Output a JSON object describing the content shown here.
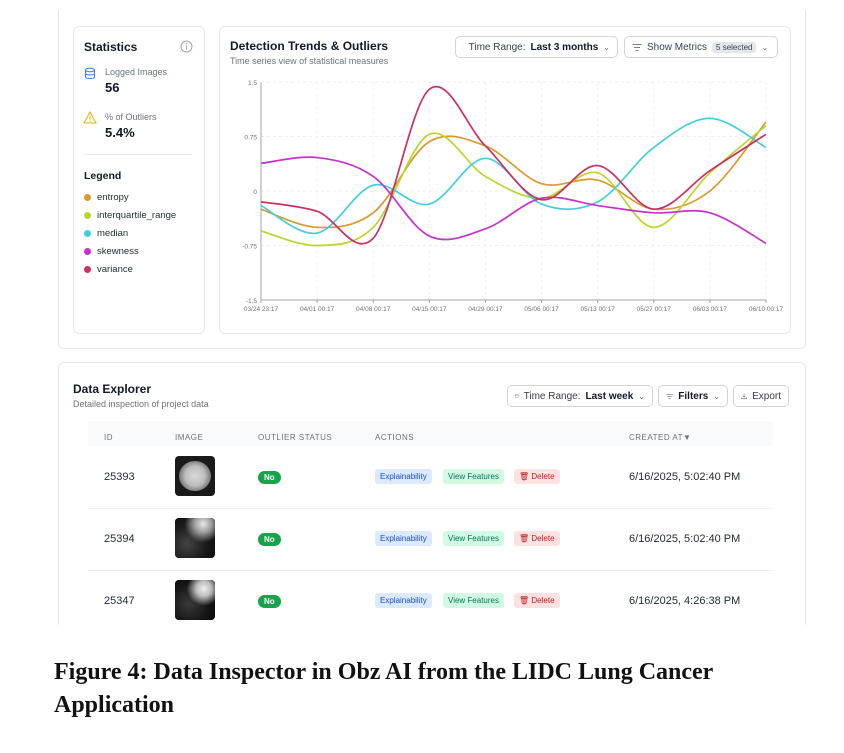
{
  "statistics": {
    "title": "Statistics",
    "logged_images_label": "Logged Images",
    "logged_images_value": "56",
    "outliers_label": "% of Outliers",
    "outliers_value": "5.4%",
    "legend_title": "Legend",
    "legend": [
      {
        "name": "entropy",
        "color": "#d89b2b"
      },
      {
        "name": "interquartile_range",
        "color": "#bcd42e"
      },
      {
        "name": "median",
        "color": "#3fd0dc"
      },
      {
        "name": "skewness",
        "color": "#c532cc"
      },
      {
        "name": "variance",
        "color": "#cc2f63"
      }
    ]
  },
  "trends": {
    "title": "Detection Trends & Outliers",
    "subtitle": "Time series view of statistical measures",
    "time_range_label": "Time Range:",
    "time_range_value": "Last 3 months",
    "show_metrics_label": "Show Metrics",
    "show_metrics_badge": "5 selected"
  },
  "chart_data": {
    "type": "line",
    "x": [
      "03/24 23:17",
      "04/01 00:17",
      "04/08 00:17",
      "04/15 00:17",
      "04/29 00:17",
      "05/06 00:17",
      "05/13 00:17",
      "05/27 00:17",
      "06/03 00:17",
      "06/10 00:17"
    ],
    "ytick_labels": [
      "1.5",
      "0.75",
      "0",
      "-0.75",
      "-1.5"
    ],
    "ylim": [
      -1.5,
      1.5
    ],
    "yticks": [
      1.5,
      0.75,
      0,
      -0.75,
      -1.5
    ],
    "grid": true,
    "series": [
      {
        "name": "entropy",
        "color": "#d89b2b",
        "values": [
          -0.25,
          -0.5,
          -0.3,
          0.68,
          0.62,
          0.1,
          0.15,
          -0.25,
          0.0,
          0.95
        ]
      },
      {
        "name": "interquartile_range",
        "color": "#bcd42e",
        "values": [
          -0.55,
          -0.75,
          -0.5,
          0.78,
          0.2,
          -0.1,
          0.25,
          -0.5,
          0.25,
          0.9
        ]
      },
      {
        "name": "median",
        "color": "#3fd0dc",
        "values": [
          -0.2,
          -0.58,
          0.08,
          -0.18,
          0.45,
          -0.18,
          -0.15,
          0.6,
          1.0,
          0.6
        ]
      },
      {
        "name": "skewness",
        "color": "#c532cc",
        "values": [
          0.38,
          0.46,
          0.2,
          -0.62,
          -0.52,
          -0.1,
          -0.2,
          -0.3,
          -0.3,
          -0.72
        ]
      },
      {
        "name": "variance",
        "color": "#cc2f63",
        "values": [
          -0.15,
          -0.28,
          -0.65,
          1.4,
          0.62,
          -0.12,
          0.35,
          -0.25,
          0.28,
          0.78
        ]
      }
    ]
  },
  "explorer": {
    "title": "Data Explorer",
    "subtitle": "Detailed inspection of project data",
    "time_range_label": "Time Range:",
    "time_range_value": "Last week",
    "filters_label": "Filters",
    "export_label": "Export",
    "columns": [
      "ID",
      "IMAGE",
      "OUTLIER STATUS",
      "ACTIONS",
      "CREATED AT▼"
    ],
    "actions": {
      "explain": "Explainability",
      "features": "View Features",
      "delete": "Delete"
    },
    "rows": [
      {
        "id": "25393",
        "status": "No",
        "created": "6/16/2025, 5:02:40 PM"
      },
      {
        "id": "25394",
        "status": "No",
        "created": "6/16/2025, 5:02:40 PM"
      },
      {
        "id": "25347",
        "status": "No",
        "created": "6/16/2025, 4:26:38 PM"
      }
    ]
  },
  "caption": "Figure 4: Data Inspector in Obz AI from the LIDC Lung Cancer Application",
  "icons": {
    "info": "info-icon",
    "database": "database-icon",
    "warning": "warning-icon",
    "calendar": "calendar-icon",
    "filter": "filter-icon",
    "export": "download-icon",
    "trash": "trash-icon"
  }
}
